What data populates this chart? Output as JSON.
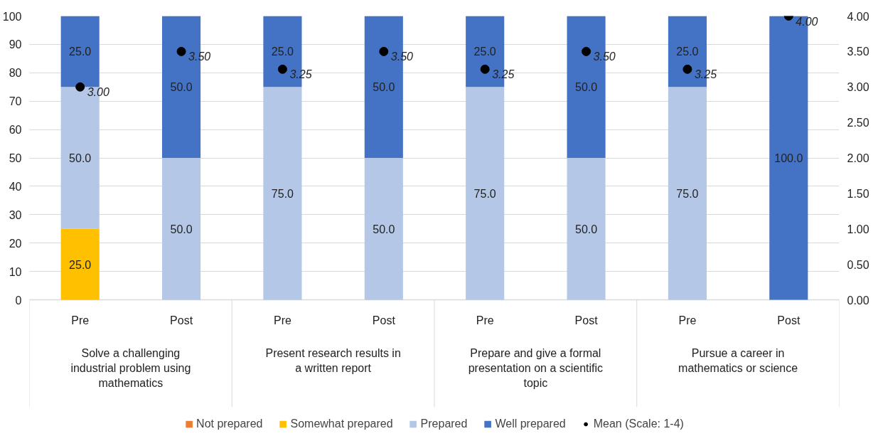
{
  "chart_data": {
    "type": "bar",
    "stacked": true,
    "categories": [
      "Pre",
      "Post",
      "Pre",
      "Post",
      "Pre",
      "Post",
      "Pre",
      "Post"
    ],
    "annotations": [
      "Solve a challenging industrial problem using mathematics",
      "Present research results in a written report",
      "Prepare and give a formal presentation on a scientific topic",
      "Pursue a career in mathematics or science"
    ],
    "series": [
      {
        "name": "Not prepared",
        "color": "#ed7d31",
        "values": [
          0,
          0,
          0,
          0,
          0,
          0,
          0,
          0
        ],
        "value_labels": [
          null,
          null,
          null,
          null,
          null,
          null,
          null,
          null
        ]
      },
      {
        "name": "Somewhat prepared",
        "color": "#ffc000",
        "values": [
          25,
          0,
          0,
          0,
          0,
          0,
          0,
          0
        ],
        "value_labels": [
          "25.0",
          null,
          null,
          null,
          null,
          null,
          null,
          null
        ]
      },
      {
        "name": "Prepared",
        "color": "#b4c7e7",
        "values": [
          50,
          50,
          75,
          50,
          75,
          50,
          75,
          0
        ],
        "value_labels": [
          "50.0",
          "50.0",
          "75.0",
          "50.0",
          "75.0",
          "50.0",
          "75.0",
          null
        ]
      },
      {
        "name": "Well prepared",
        "color": "#4472c4",
        "values": [
          25,
          50,
          25,
          50,
          25,
          50,
          25,
          100
        ],
        "value_labels": [
          "25.0",
          "50.0",
          "25.0",
          "50.0",
          "25.0",
          "50.0",
          "25.0",
          "100.0"
        ]
      },
      {
        "name": "Mean (Scale: 1-4)",
        "type": "scatter",
        "axis": "y2",
        "color": "#000000",
        "marker": "circle",
        "values": [
          3.0,
          3.5,
          3.25,
          3.5,
          3.25,
          3.5,
          3.25,
          4.0
        ],
        "value_labels": [
          "3.00",
          "3.50",
          "3.25",
          "3.50",
          "3.25",
          "3.50",
          "3.25",
          "4.00"
        ]
      }
    ],
    "ylim": [
      0,
      100
    ],
    "yticks": [
      0,
      10,
      20,
      30,
      40,
      50,
      60,
      70,
      80,
      90,
      100
    ],
    "y2lim": [
      0,
      4
    ],
    "y2ticks": [
      {
        "value": 0,
        "label": "0.00"
      },
      {
        "value": 0.5,
        "label": "0.50"
      },
      {
        "value": 1,
        "label": "1.00"
      },
      {
        "value": 1.5,
        "label": "1.50"
      },
      {
        "value": 2,
        "label": "2.00"
      },
      {
        "value": 2.5,
        "label": "2.50"
      },
      {
        "value": 3,
        "label": "3.00"
      },
      {
        "value": 3.5,
        "label": "3.50"
      },
      {
        "value": 4,
        "label": "4.00"
      }
    ],
    "grid": "y",
    "legend": "bottom"
  }
}
